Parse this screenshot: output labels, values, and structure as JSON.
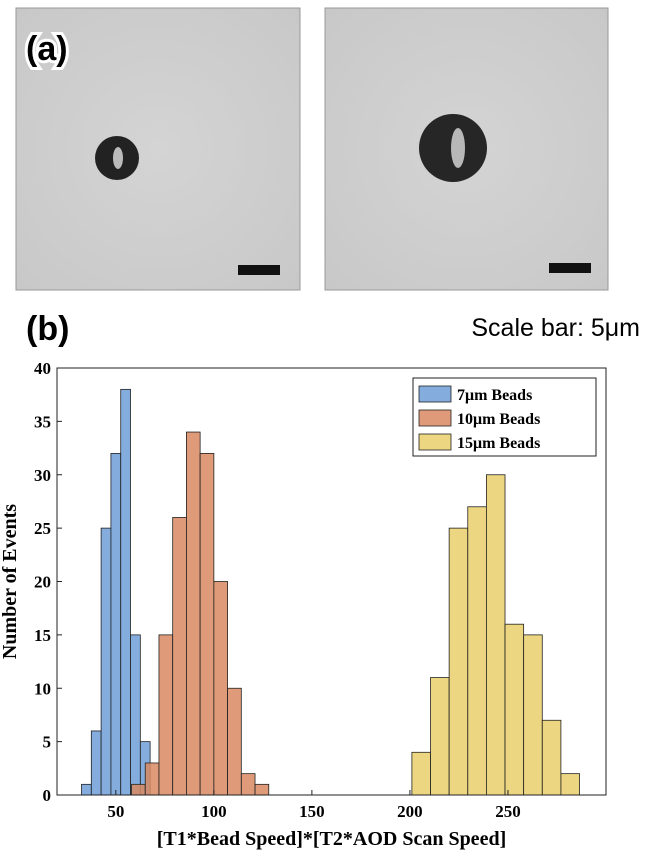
{
  "figure": {
    "label_a": "(a)",
    "label_b": "(b)",
    "scale_note": "Scale bar: 5μm"
  },
  "chart_data": {
    "type": "histogram",
    "xlabel": "[T1*Bead Speed]*[T2*AOD Scan Speed]",
    "ylabel": "Number of Events",
    "xlim": [
      20,
      300
    ],
    "ylim": [
      0,
      40
    ],
    "xticks": [
      50,
      100,
      150,
      200,
      250
    ],
    "yticks": [
      0,
      5,
      10,
      15,
      20,
      25,
      30,
      35,
      40
    ],
    "legend": "upper right",
    "series": [
      {
        "name": "7μm Beads",
        "color": "#6f9fd8",
        "bins": [
          32.5,
          37.5,
          42.5,
          47.5,
          52.5,
          57.5,
          62.5,
          67.5
        ],
        "values": [
          1,
          6,
          25,
          32,
          38,
          15,
          5
        ]
      },
      {
        "name": "10μm Beads",
        "color": "#d98a62",
        "bins": [
          58,
          65,
          72,
          79,
          86,
          93,
          100,
          107,
          114,
          121,
          128
        ],
        "values": [
          1,
          3,
          15,
          26,
          34,
          32,
          20,
          10,
          2,
          1
        ]
      },
      {
        "name": "15μm Beads",
        "color": "#e9cf6b",
        "bins": [
          201,
          210.5,
          220,
          229.5,
          239,
          248.5,
          258,
          267.5,
          277,
          286.5
        ],
        "values": [
          4,
          11,
          25,
          27,
          30,
          16,
          15,
          7,
          2
        ]
      }
    ]
  }
}
